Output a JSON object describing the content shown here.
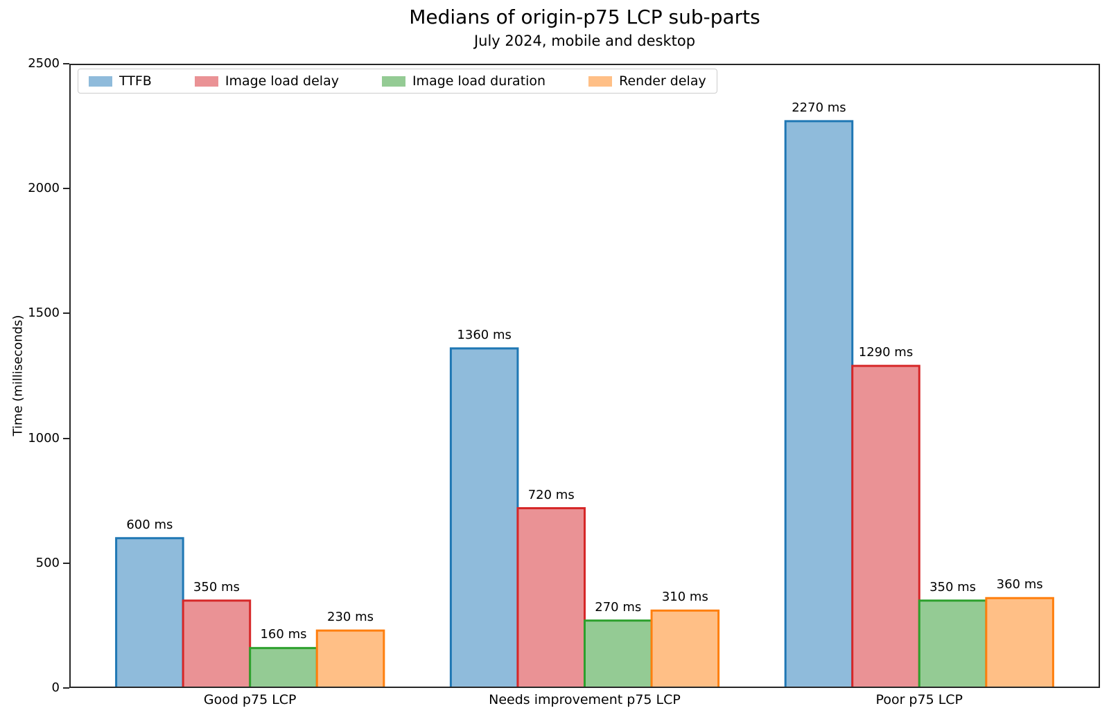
{
  "chart_data": {
    "type": "bar",
    "title": "Medians of origin-p75 LCP sub-parts",
    "subtitle": "July 2024, mobile and desktop",
    "ylabel": "Time (milliseconds)",
    "xlabel": "",
    "value_suffix": " ms",
    "categories": [
      "Good p75 LCP",
      "Needs improvement p75 LCP",
      "Poor p75 LCP"
    ],
    "series": [
      {
        "name": "TTFB",
        "fill": "#8fbbdb",
        "edge": "#1f77b4",
        "values": [
          600,
          1360,
          2270
        ]
      },
      {
        "name": "Image load delay",
        "fill": "#ea9295",
        "edge": "#d62728",
        "values": [
          350,
          720,
          1290
        ]
      },
      {
        "name": "Image load duration",
        "fill": "#94cb94",
        "edge": "#2ca02c",
        "values": [
          160,
          270,
          350
        ]
      },
      {
        "name": "Render delay",
        "fill": "#ffbf86",
        "edge": "#ff7f0e",
        "values": [
          230,
          310,
          360
        ]
      }
    ],
    "ylim": [
      0,
      2500
    ],
    "yticks": [
      0,
      500,
      1000,
      1500,
      2000,
      2500
    ],
    "xlim": [
      -0.54,
      2.54
    ],
    "bar_width": 0.2,
    "grid": false,
    "legend_position": "upper left",
    "frame_color": "#262626"
  }
}
